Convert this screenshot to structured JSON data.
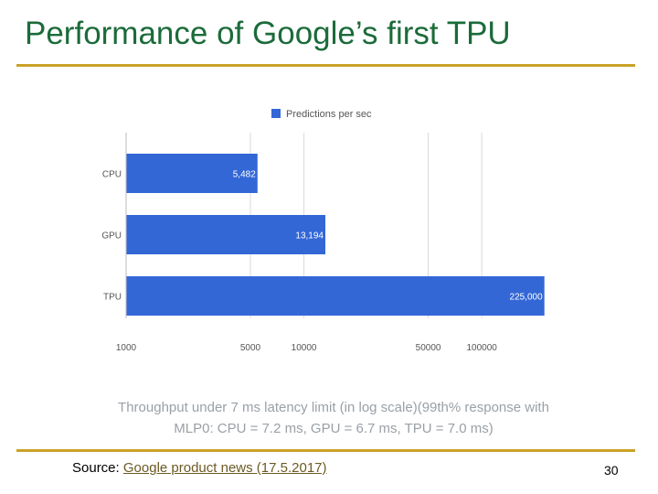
{
  "slide": {
    "title": "Performance of Google’s first TPU",
    "caption_line1": "Throughput under 7 ms latency limit (in log scale)(99th% response with",
    "caption_line2": "MLP0: CPU = 7.2 ms, GPU = 6.7 ms, TPU = 7.0 ms)",
    "source_label": "Source:",
    "source_link": "Google product news (17.5.2017)",
    "page_number": "30",
    "rule_color": "#c9a227",
    "title_color": "#1b6b3a"
  },
  "chart_data": {
    "type": "bar",
    "orientation": "horizontal",
    "scale": "log",
    "categories": [
      "CPU",
      "GPU",
      "TPU"
    ],
    "series": [
      {
        "name": "Predictions per sec",
        "color": "#3367d6",
        "values": [
          5482,
          13194,
          225000
        ],
        "labels": [
          "5,482",
          "13,194",
          "225,000"
        ]
      }
    ],
    "x_ticks": [
      1000,
      5000,
      10000,
      50000,
      100000
    ],
    "x_tick_labels": [
      "1000",
      "5000",
      "10000",
      "50000",
      "100000"
    ],
    "xlim": [
      1000,
      300000
    ],
    "grid": true,
    "legend": "top"
  }
}
